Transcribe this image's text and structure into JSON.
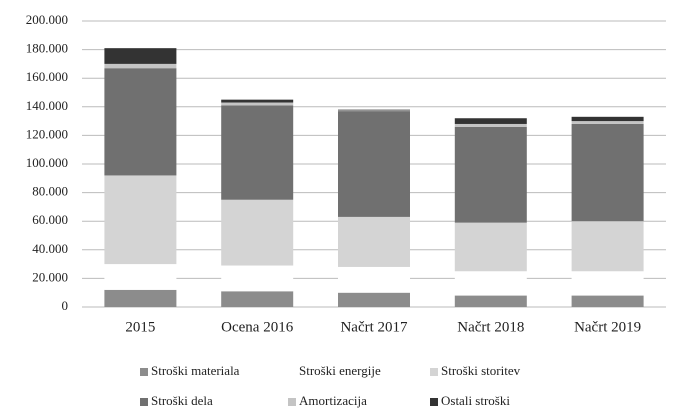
{
  "chart_data": {
    "type": "stacked_bar",
    "categories": [
      "2015",
      "Ocena 2016",
      "Načrt 2017",
      "Načrt 2018",
      "Načrt 2019"
    ],
    "series": [
      {
        "name": "Stroški materiala",
        "color": "#8c8c8c",
        "values": [
          12000,
          11000,
          10000,
          8000,
          8000
        ]
      },
      {
        "name": "Stroški energije",
        "color": "#ffffff",
        "values": [
          18000,
          18000,
          18000,
          17000,
          17000
        ]
      },
      {
        "name": "Stroški storitev",
        "color": "#d4d4d4",
        "values": [
          62000,
          46000,
          35000,
          34000,
          35000
        ]
      },
      {
        "name": "Stroški dela",
        "color": "#707070",
        "values": [
          75000,
          66000,
          74000,
          67000,
          68000
        ]
      },
      {
        "name": "Amortizacija",
        "color": "#c4c4c4",
        "values": [
          3000,
          2000,
          500,
          2000,
          2000
        ]
      },
      {
        "name": "Ostali stroški",
        "color": "#333333",
        "values": [
          11000,
          2000,
          500,
          4000,
          3000
        ]
      }
    ],
    "ylim": [
      0,
      200000
    ],
    "yticks": [
      0,
      {
        "value": 20000,
        "label": "20.000"
      },
      {
        "value": 40000,
        "label": "40.000"
      },
      {
        "value": 60000,
        "label": "60.000"
      },
      {
        "value": 80000,
        "label": "80.000"
      },
      {
        "value": 100000,
        "label": "100.000"
      },
      {
        "value": 120000,
        "label": "120.000"
      },
      {
        "value": 140000,
        "label": "140.000"
      },
      {
        "value": 160000,
        "label": "160.000"
      },
      {
        "value": 180000,
        "label": "180.000"
      },
      {
        "value": 200000,
        "label": "200.000"
      }
    ],
    "grid": true,
    "legend": "bottom"
  }
}
